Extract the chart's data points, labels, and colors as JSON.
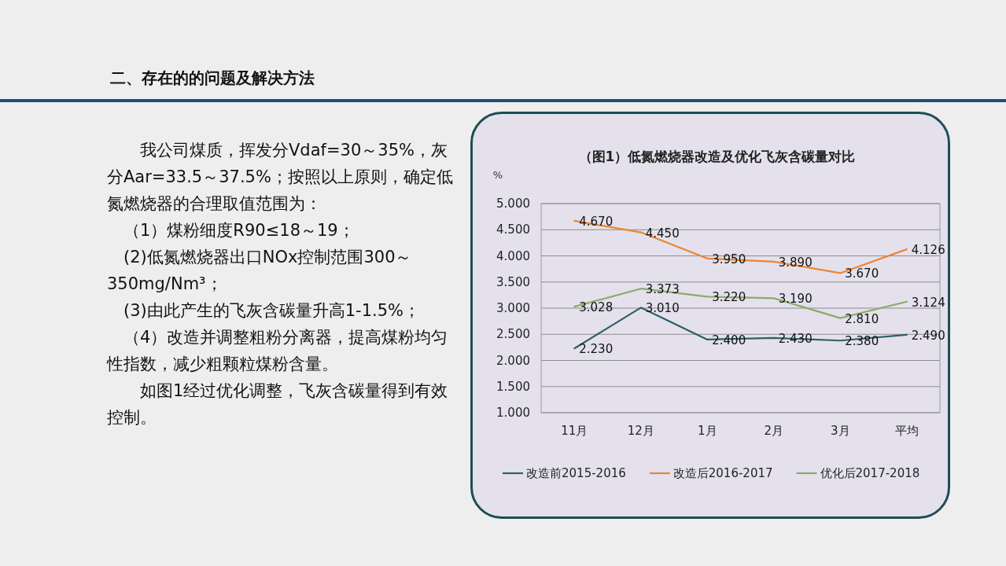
{
  "chart_data": {
    "type": "line",
    "title": "（图1）低氮燃烧器改造及优化飞灰含碳量对比",
    "ylabel": "%",
    "categories": [
      "11月",
      "12月",
      "1月",
      "2月",
      "3月",
      "平均"
    ],
    "ylim": [
      1,
      5
    ],
    "yticks": [
      {
        "value": 1,
        "label": "1.000"
      },
      {
        "value": 1.5,
        "label": "1.500"
      },
      {
        "value": 2,
        "label": "2.000"
      },
      {
        "value": 2.5,
        "label": "2.500"
      },
      {
        "value": 3,
        "label": "3.000"
      },
      {
        "value": 3.5,
        "label": "3.500"
      },
      {
        "value": 4,
        "label": "4.000"
      },
      {
        "value": 4.5,
        "label": "4.500"
      },
      {
        "value": 5,
        "label": "5.000"
      }
    ],
    "grid": "y",
    "legend": "bottom",
    "marker": "none",
    "line_style": "solid",
    "series": [
      {
        "name": "改造前2015-2016",
        "color": "#2e5f66",
        "values": [
          2.23,
          3.01,
          2.4,
          2.43,
          2.38,
          2.49
        ],
        "value_labels": [
          "2.230",
          "3.010",
          "2.400",
          "2.430",
          "2.380",
          "2.490"
        ]
      },
      {
        "name": "改造后2016-2017",
        "color": "#ee8431",
        "values": [
          4.67,
          4.45,
          3.95,
          3.89,
          3.67,
          4.126
        ],
        "value_labels": [
          "4.670",
          "4.450",
          "3.950",
          "3.890",
          "3.670",
          "4.126"
        ]
      },
      {
        "name": "优化后2017-2018",
        "color": "#8aac6c",
        "values": [
          3.028,
          3.373,
          3.22,
          3.19,
          2.81,
          3.124
        ],
        "value_labels": [
          "3.028",
          "3.373",
          "3.220",
          "3.190",
          "2.810",
          "3.124"
        ]
      }
    ],
    "annotations": [
      "二、存在的的问题及解决方法",
      "我公司煤质，挥发分Vdaf=30～35%，灰分Aar=33.5～37.5%；按照以上原则，确定低氮燃烧器的合理取值范围为：",
      "（1）煤粉细度R90≤18～19；",
      "(2)低氮燃烧器出口NOx控制范围300～350mg/Nm³；",
      "(3)由此产生的飞灰含碳量升高1-1.5%；",
      "（4）改造并调整粗粉分离器，提高煤粉均匀性指数，减少粗颗粒煤粉含量。",
      "如图1经过优化调整，飞灰含碳量得到有效控制。"
    ]
  }
}
